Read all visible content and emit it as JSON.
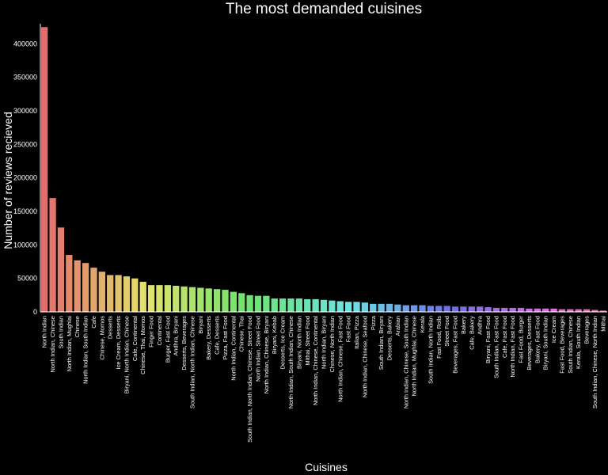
{
  "chart_data": {
    "type": "bar",
    "title": "The most demanded cuisines",
    "xlabel": "Cuisines",
    "ylabel": "Number of reviews recieved",
    "ylim": [
      0,
      430000
    ],
    "yticks": [
      0,
      50000,
      100000,
      150000,
      200000,
      250000,
      300000,
      350000,
      400000
    ],
    "grid": false,
    "categories": [
      "North Indian",
      "North Indian, Chinese",
      "South Indian",
      "North Indian, Mughlai",
      "Chinese",
      "North Indian, South Indian",
      "Cafe",
      "Chinese, Momos",
      "Desserts",
      "Ice Cream, Desserts",
      "Biryani, North Indian, Chinese",
      "Cafe, Continental",
      "Chinese, Thai, Momos",
      "Finger Food",
      "Continental",
      "Burger, Fast Food",
      "Andhra, Biryani",
      "Desserts, Beverages",
      "South Indian, North Indian, Chinese",
      "Biryani",
      "Bakery, Desserts",
      "Cafe, Desserts",
      "Pizza, Fast Food",
      "North Indian, Continental",
      "Chinese, Thai",
      "South Indian, North Indian, Chinese, Street Food",
      "North Indian, Street Food",
      "North Indian, Chinese, Biryani",
      "Biryani, Kebab",
      "Desserts, Ice Cream",
      "North Indian, South Indian, Chinese",
      "Biryani, North Indian",
      "Mithai, Street Food",
      "North Indian, Chinese, Continental",
      "North Indian, Biryani",
      "Chinese, North Indian",
      "North Indian, Chinese, Fast Food",
      "Fast Food",
      "Italian, Pizza",
      "North Indian, Chinese, Seafood",
      "Pizza",
      "South Indian, Biryani",
      "Desserts, Bakery",
      "Arabian",
      "North Indian, Chinese, South Indian",
      "North Indian, Mughlai, Chinese",
      "Kerala",
      "South Indian, North Indian",
      "Fast Food, Rolls",
      "Street Food",
      "Beverages, Fast Food",
      "Bakery",
      "Cafe, Bakery",
      "Andhra",
      "Biryani, Fast Food",
      "South Indian, Fast Food",
      "Cafe, Fast Food",
      "North Indian, Fast Food",
      "Fast Food, Burger",
      "Beverages, Desserts",
      "Bakery, Fast Food",
      "Biryani, South Indian",
      "Ice Cream",
      "Fast Food, Beverages",
      "South Indian, Chinese",
      "Kerala, South Indian",
      "Beverages",
      "South Indian, Chinese, North Indian",
      "Mithai"
    ],
    "values": [
      425000,
      170000,
      126000,
      85000,
      77000,
      73000,
      66000,
      60000,
      55000,
      55000,
      53000,
      50000,
      45000,
      40000,
      40000,
      40000,
      39000,
      38000,
      37000,
      36000,
      35000,
      34000,
      33000,
      30000,
      28000,
      25000,
      24000,
      24000,
      20000,
      20000,
      20000,
      20000,
      19000,
      19000,
      18000,
      17000,
      16000,
      15000,
      15000,
      14000,
      12000,
      12000,
      12000,
      11000,
      10000,
      10000,
      10000,
      9000,
      9000,
      9000,
      8000,
      8000,
      8000,
      8000,
      7000,
      6000,
      6000,
      6000,
      6000,
      5000,
      5000,
      5000,
      5000,
      4000,
      4000,
      4000,
      4000,
      3000,
      2000
    ],
    "palette": {
      "start_hue": 0,
      "hue_span": 330,
      "saturation": 68,
      "lightness": 66
    },
    "colors": {
      "background": "#000000",
      "text": "#ffffff",
      "axis": "#ffffff"
    }
  }
}
